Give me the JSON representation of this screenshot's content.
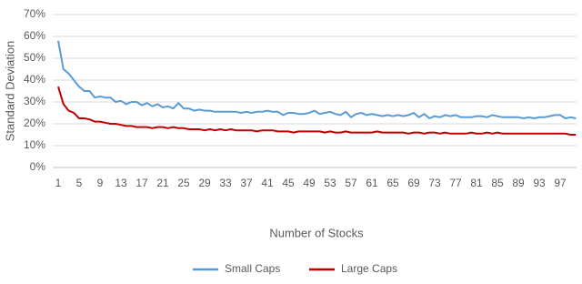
{
  "chart_data": {
    "type": "line",
    "x_label": "Number of Stocks",
    "y_label": "Standard Deviation",
    "x": [
      1,
      2,
      3,
      4,
      5,
      6,
      7,
      8,
      9,
      10,
      11,
      12,
      13,
      14,
      15,
      16,
      17,
      18,
      19,
      20,
      21,
      22,
      23,
      24,
      25,
      26,
      27,
      28,
      29,
      30,
      31,
      32,
      33,
      34,
      35,
      36,
      37,
      38,
      39,
      40,
      41,
      42,
      43,
      44,
      45,
      46,
      47,
      48,
      49,
      50,
      51,
      52,
      53,
      54,
      55,
      56,
      57,
      58,
      59,
      60,
      61,
      62,
      63,
      64,
      65,
      66,
      67,
      68,
      69,
      70,
      71,
      72,
      73,
      74,
      75,
      76,
      77,
      78,
      79,
      80,
      81,
      82,
      83,
      84,
      85,
      86,
      87,
      88,
      89,
      90,
      91,
      92,
      93,
      94,
      95,
      96,
      97,
      98,
      99,
      100
    ],
    "series": [
      {
        "name": "Small Caps",
        "color": "#5b9bd5",
        "values": [
          58,
          45,
          43,
          40,
          37,
          35,
          35,
          32,
          32.5,
          32,
          32,
          30,
          30.5,
          29,
          30,
          30,
          28.5,
          29.5,
          28,
          29,
          27.5,
          28,
          27,
          29.5,
          27,
          27,
          26,
          26.5,
          26,
          26,
          25.5,
          25.5,
          25.5,
          25.5,
          25.5,
          25,
          25.5,
          25,
          25.5,
          25.5,
          26,
          25.5,
          25.5,
          24,
          25,
          25,
          24.5,
          24.5,
          25,
          26,
          24.5,
          25,
          25.5,
          24.5,
          24,
          25.5,
          23,
          24.5,
          25,
          24,
          24.5,
          24,
          23.5,
          24,
          23.5,
          24,
          23.5,
          24,
          25,
          23,
          24.5,
          22.5,
          23.5,
          23,
          24,
          23.5,
          24,
          23,
          23,
          23,
          23.5,
          23.5,
          23,
          24,
          23.5,
          23,
          23,
          23,
          23,
          22.5,
          23,
          22.5,
          23,
          23,
          23.5,
          24,
          24,
          22.5,
          23,
          22.5
        ]
      },
      {
        "name": "Large Caps",
        "color": "#c00000",
        "values": [
          37,
          29,
          26,
          25,
          22.5,
          22.5,
          22,
          21,
          21,
          20.5,
          20,
          20,
          19.5,
          19,
          19,
          18.5,
          18.5,
          18.5,
          18,
          18.5,
          18.5,
          18,
          18.5,
          18,
          18,
          17.5,
          17.5,
          17.5,
          17,
          17.5,
          17,
          17.5,
          17,
          17.5,
          17,
          17,
          17,
          17,
          16.5,
          17,
          17,
          17,
          16.5,
          16.5,
          16.5,
          16,
          16.5,
          16.5,
          16.5,
          16.5,
          16.5,
          16,
          16.5,
          16,
          16,
          16.5,
          16,
          16,
          16,
          16,
          16,
          16.5,
          16,
          16,
          16,
          16,
          16,
          15.5,
          16,
          16,
          15.5,
          16,
          16,
          15.5,
          16,
          15.5,
          15.5,
          15.5,
          15.5,
          16,
          15.5,
          15.5,
          16,
          15.5,
          16,
          15.5,
          15.5,
          15.5,
          15.5,
          15.5,
          15.5,
          15.5,
          15.5,
          15.5,
          15.5,
          15.5,
          15.5,
          15.5,
          15,
          15
        ]
      }
    ],
    "xlim": [
      1,
      100
    ],
    "xticks": [
      1,
      5,
      9,
      13,
      17,
      21,
      25,
      29,
      33,
      37,
      41,
      45,
      49,
      53,
      57,
      61,
      65,
      69,
      73,
      77,
      81,
      85,
      89,
      93,
      97
    ],
    "ylim": [
      0,
      70
    ],
    "yticks": [
      {
        "value": 0,
        "label": "0%"
      },
      {
        "value": 10,
        "label": "10%"
      },
      {
        "value": 20,
        "label": "20%"
      },
      {
        "value": 30,
        "label": "30%"
      },
      {
        "value": 40,
        "label": "40%"
      },
      {
        "value": 50,
        "label": "50%"
      },
      {
        "value": 60,
        "label": "60%"
      },
      {
        "value": 70,
        "label": "70%"
      }
    ],
    "grid": true,
    "legend": "bottom"
  }
}
